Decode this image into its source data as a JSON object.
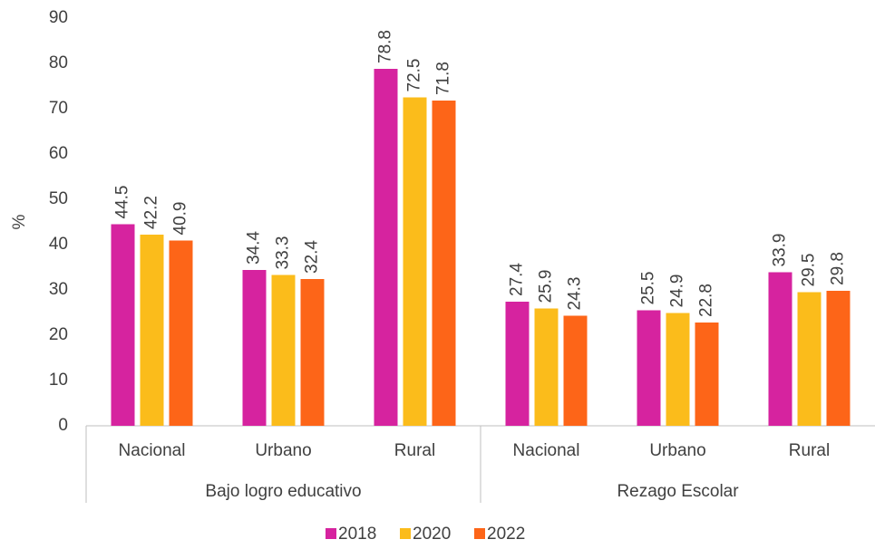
{
  "chart_data": {
    "type": "bar",
    "y_label": "%",
    "groups": [
      {
        "name": "Bajo logro educativo",
        "categories": [
          "Nacional",
          "Urbano",
          "Rural"
        ]
      },
      {
        "name": "Rezago Escolar",
        "categories": [
          "Nacional",
          "Urbano",
          "Rural"
        ]
      }
    ],
    "series": [
      {
        "name": "2018",
        "color": "#d6239f",
        "values": [
          44.5,
          34.4,
          78.8,
          27.4,
          25.5,
          33.9
        ]
      },
      {
        "name": "2020",
        "color": "#fbbc1b",
        "values": [
          42.2,
          33.3,
          72.5,
          25.9,
          24.9,
          29.5
        ]
      },
      {
        "name": "2022",
        "color": "#fd6518",
        "values": [
          40.9,
          32.4,
          71.8,
          24.3,
          22.8,
          29.8
        ]
      }
    ],
    "ylim": [
      0,
      90
    ],
    "yticks": [
      0,
      10,
      20,
      30,
      40,
      50,
      60,
      70,
      80,
      90
    ],
    "grid": false,
    "legend": "bottom"
  }
}
